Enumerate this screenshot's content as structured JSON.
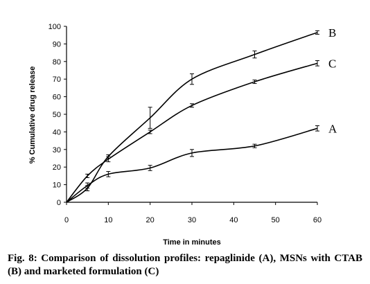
{
  "chart_data": {
    "type": "line",
    "title": "",
    "xlabel": "Time in minutes",
    "ylabel": "% Cumulative drug release",
    "xlim": [
      0,
      60
    ],
    "ylim": [
      0,
      100
    ],
    "x_ticks": [
      0,
      10,
      20,
      30,
      40,
      50,
      60
    ],
    "y_ticks": [
      0,
      10,
      20,
      30,
      40,
      50,
      60,
      70,
      80,
      90,
      100
    ],
    "grid": false,
    "legend": "none",
    "series": [
      {
        "name": "A",
        "x": [
          0,
          5,
          10,
          20,
          30,
          45,
          60
        ],
        "y": [
          0,
          9.5,
          16,
          19.5,
          28,
          32,
          42
        ],
        "err": [
          0,
          1.5,
          1.5,
          1.5,
          2,
          1,
          1.5
        ]
      },
      {
        "name": "B",
        "x": [
          0,
          5,
          10,
          20,
          30,
          45,
          60
        ],
        "y": [
          0,
          8,
          26,
          48,
          70,
          84,
          96.5
        ],
        "err": [
          0,
          1.5,
          1,
          6,
          3,
          2,
          1
        ]
      },
      {
        "name": "C",
        "x": [
          0,
          5,
          10,
          20,
          30,
          45,
          60
        ],
        "y": [
          0,
          15,
          24.5,
          40,
          55,
          68.5,
          79
        ],
        "err": [
          0,
          1,
          1.5,
          1,
          1,
          1,
          1.5
        ]
      }
    ]
  },
  "caption": "Fig. 8: Comparison of dissolution profiles: repaglinide (A), MSNs with CTAB (B) and marketed formulation (C)"
}
